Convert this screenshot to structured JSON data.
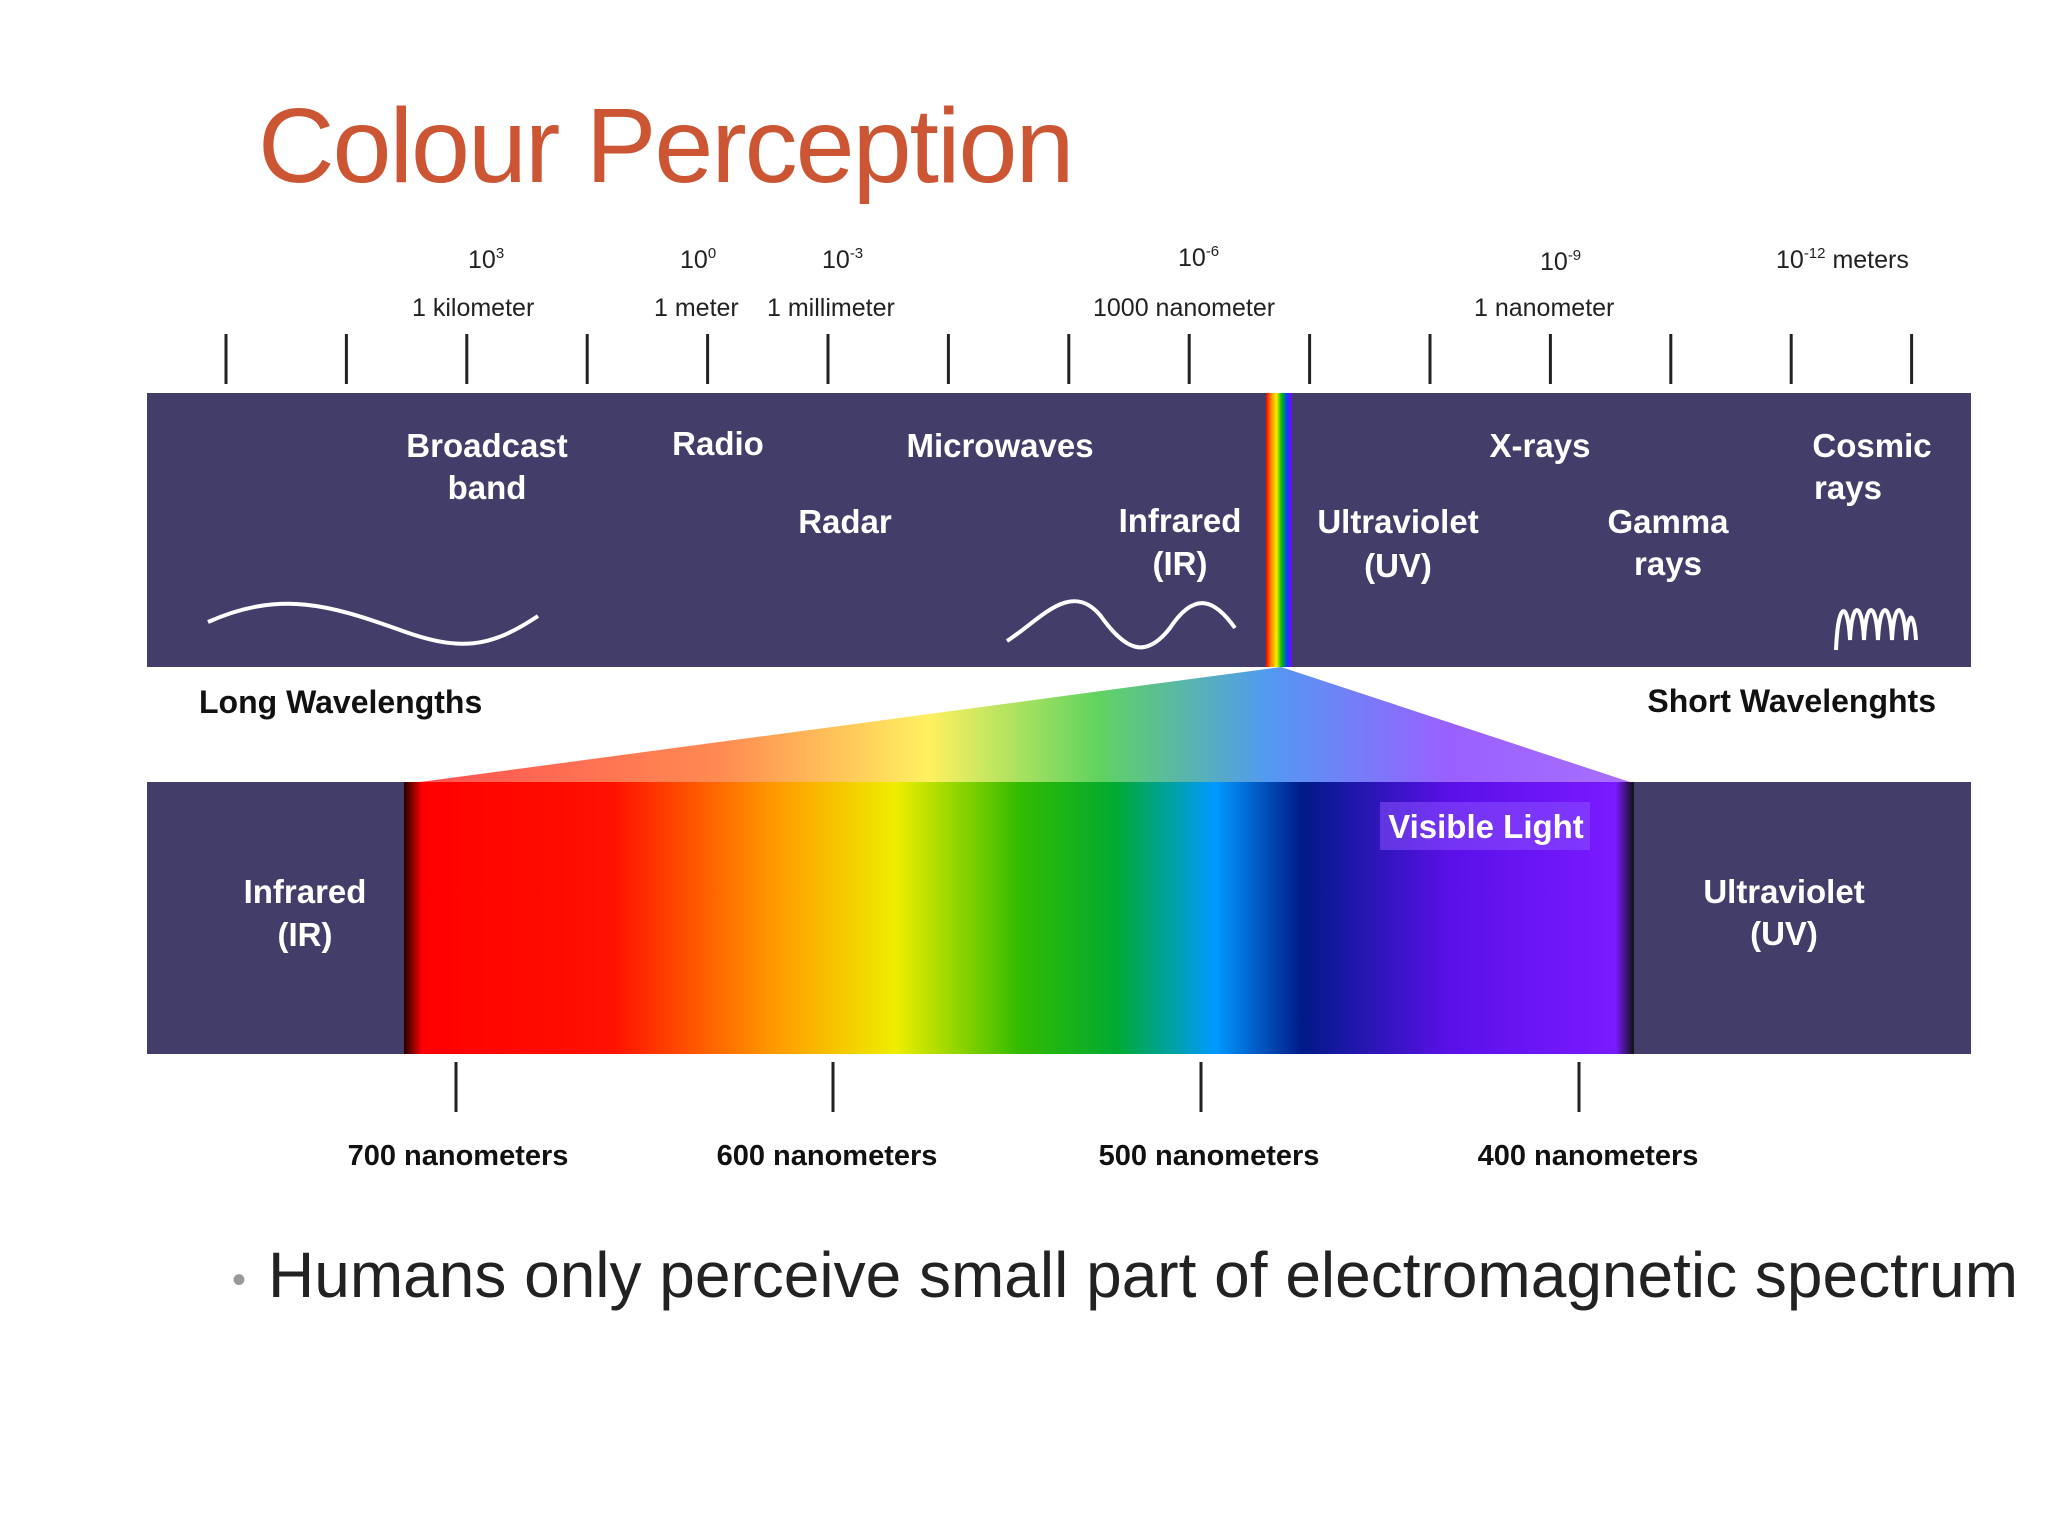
{
  "title": "Colour Perception",
  "colors": {
    "title": "#cc5533",
    "band": "#433d69",
    "text": "#222222"
  },
  "scale": {
    "exponents": [
      {
        "base": "10",
        "exp": "3",
        "suffix": ""
      },
      {
        "base": "10",
        "exp": "0",
        "suffix": ""
      },
      {
        "base": "10",
        "exp": "-3",
        "suffix": ""
      },
      {
        "base": "10",
        "exp": "-6",
        "suffix": ""
      },
      {
        "base": "10",
        "exp": "-9",
        "suffix": ""
      },
      {
        "base": "10",
        "exp": "-12",
        "suffix": " meters"
      }
    ],
    "units": [
      "1 kilometer",
      "1 meter",
      "1 millimeter",
      "1000 nanometer",
      "1 nanometer"
    ]
  },
  "bands": {
    "broadcast": [
      "Broadcast",
      "band"
    ],
    "radio": "Radio",
    "microwaves": "Microwaves",
    "radar": "Radar",
    "infrared": [
      "Infrared",
      "(IR)"
    ],
    "ultraviolet": [
      "Ultraviolet",
      "(UV)"
    ],
    "xrays": "X-rays",
    "gamma": [
      "Gamma",
      "rays"
    ],
    "cosmic": [
      "Cosmic",
      "rays"
    ]
  },
  "long_wavelengths": "Long Wavelengths",
  "short_wavelengths": "Short Wavelenghts",
  "visible": {
    "label": "Visible Light",
    "infrared": [
      "Infrared",
      "(IR)"
    ],
    "ultraviolet": [
      "Ultraviolet",
      "(UV)"
    ],
    "nm_labels": [
      "700 nanometers",
      "600 nanometers",
      "500 nanometers",
      "400 nanometers"
    ]
  },
  "bullet": "Humans only perceive small part of electromagnetic spectrum"
}
